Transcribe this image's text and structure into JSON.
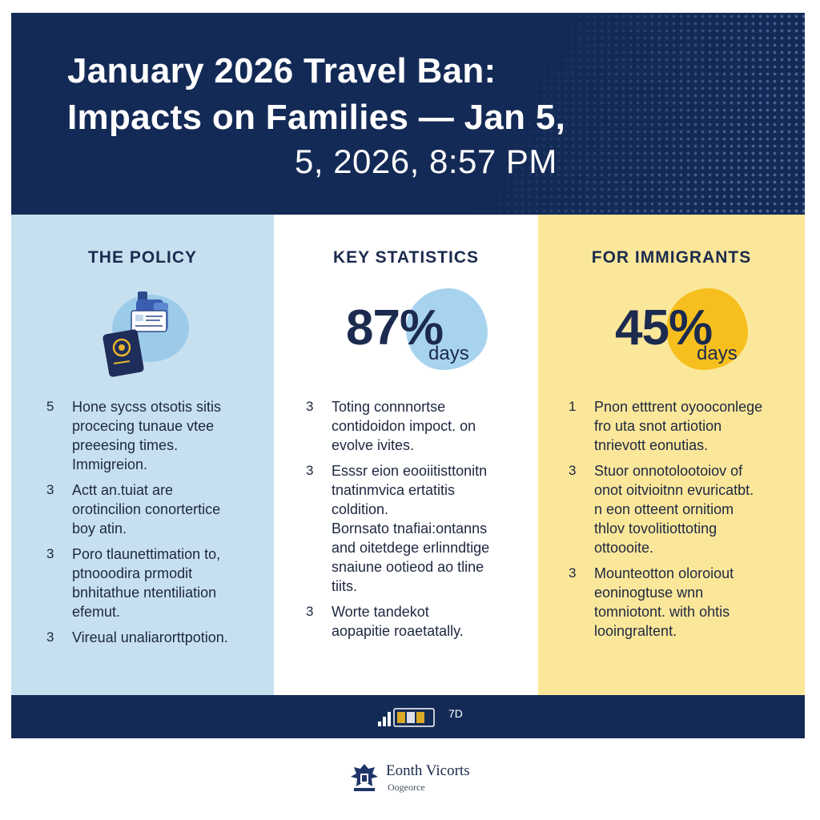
{
  "header": {
    "title_line1": "January 2026 Travel Ban:",
    "title_line2": "Impacts on Families — Jan 5,",
    "subtitle": "5, 2026, 8:57 PM"
  },
  "colors": {
    "navy": "#142a56",
    "policy_bg": "#c7e0f0",
    "stats_bg": "#ffffff",
    "immigrants_bg": "#fbe79a",
    "stats_blob": "#a8d3ef",
    "immigrants_blob": "#f6bf1d"
  },
  "columns": {
    "policy": {
      "heading": "THE POLICY",
      "icon": "passport-documents-icon",
      "items": [
        {
          "num": "5",
          "lines": [
            "Hone sycss otsotis sitis",
            "procecing tunaue vtee",
            "preeesing times.",
            "Immigreion."
          ]
        },
        {
          "num": "3",
          "lines": [
            "Actt an.tuiat are",
            "orotincilion conortertice",
            "boy atin."
          ]
        },
        {
          "num": "3",
          "lines": [
            "Poro tlaunettimation to,",
            "ptnooodira prmodit",
            "bnhitathue ntentiliation",
            "efemut."
          ]
        },
        {
          "num": "3",
          "lines": [
            "Vireual unaliarorttpotion."
          ]
        }
      ]
    },
    "stats": {
      "heading": "KEY STATISTICS",
      "value": "87%",
      "unit": "days",
      "items": [
        {
          "num": "3",
          "lines": [
            "Toting connnortse",
            "contidoidon impoct. on",
            "evolve ivites."
          ]
        },
        {
          "num": "3",
          "lines": [
            "Esssr eion eooiitisttonitn",
            "tnatinmvica ertatitis",
            "coldition.",
            "Bornsato tnafiai:ontanns",
            "and oitetdege erlinndtige",
            "snaiune ootieod ao tline",
            "tiits."
          ]
        },
        {
          "num": "3",
          "lines": [
            "Worte tandekot",
            "aopapitie roaetatally."
          ]
        }
      ]
    },
    "immigrants": {
      "heading": "FOR IMMIGRANTS",
      "value": "45%",
      "unit": "days",
      "items": [
        {
          "num": "1",
          "lines": [
            "Pnon etttrent oyooconlege",
            "fro uta snot artiotion",
            "tnrievott eonutias."
          ]
        },
        {
          "num": "3",
          "lines": [
            "Stuor onnotolootoiov of",
            "onot oitvioitnn evuricatbt.",
            "n eon otteent ornitiom",
            "thlov tovolitiottoting",
            "ottoooite."
          ]
        },
        {
          "num": "3",
          "lines": [
            "Mounteotton oloroiout",
            "eoninogtuse wnn",
            "tomniotont. with ohtis",
            "looingraltent."
          ]
        }
      ]
    }
  },
  "footer": {
    "emblem_text": "7D",
    "logo_icon": "eagle-seal-icon",
    "logo_name": "Eonth Vicorts",
    "logo_sub": "Oogeorce"
  }
}
